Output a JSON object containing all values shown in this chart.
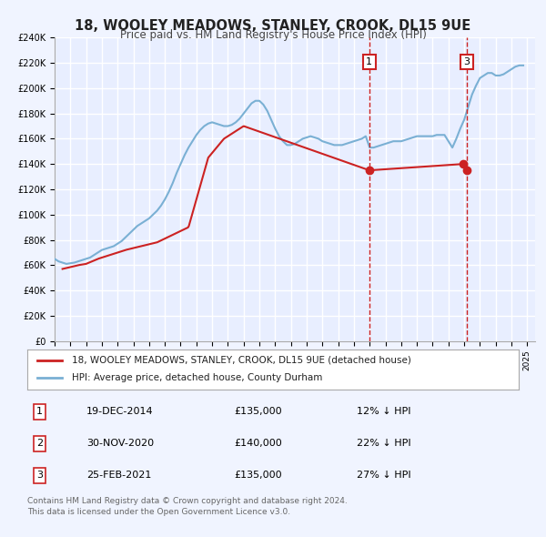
{
  "title": "18, WOOLEY MEADOWS, STANLEY, CROOK, DL15 9UE",
  "subtitle": "Price paid vs. HM Land Registry's House Price Index (HPI)",
  "bg_color": "#f0f4ff",
  "plot_bg_color": "#e8eeff",
  "grid_color": "#ffffff",
  "hpi_color": "#7ab0d4",
  "price_color": "#cc2222",
  "ylim": [
    0,
    240000
  ],
  "yticks": [
    0,
    20000,
    40000,
    60000,
    80000,
    100000,
    120000,
    140000,
    160000,
    180000,
    200000,
    220000,
    240000
  ],
  "xlim_start": 1995.0,
  "xlim_end": 2025.5,
  "xticks": [
    1995,
    1996,
    1997,
    1998,
    1999,
    2000,
    2001,
    2002,
    2003,
    2004,
    2005,
    2006,
    2007,
    2008,
    2009,
    2010,
    2011,
    2012,
    2013,
    2014,
    2015,
    2016,
    2017,
    2018,
    2019,
    2020,
    2021,
    2022,
    2023,
    2024,
    2025
  ],
  "legend_label_red": "18, WOOLEY MEADOWS, STANLEY, CROOK, DL15 9UE (detached house)",
  "legend_label_blue": "HPI: Average price, detached house, County Durham",
  "transactions": [
    {
      "num": 1,
      "date": "19-DEC-2014",
      "price": 135000,
      "pct": "12%",
      "dir": "↓",
      "x": 2014.97
    },
    {
      "num": 2,
      "date": "30-NOV-2020",
      "price": 140000,
      "pct": "22%",
      "dir": "↓",
      "x": 2020.92
    },
    {
      "num": 3,
      "date": "25-FEB-2021",
      "price": 135000,
      "pct": "27%",
      "dir": "↓",
      "x": 2021.15
    }
  ],
  "vline1_x": 2014.97,
  "vline2_x": 2021.15,
  "footer1": "Contains HM Land Registry data © Crown copyright and database right 2024.",
  "footer2": "This data is licensed under the Open Government Licence v3.0.",
  "hpi_data_x": [
    1995.0,
    1995.25,
    1995.5,
    1995.75,
    1996.0,
    1996.25,
    1996.5,
    1996.75,
    1997.0,
    1997.25,
    1997.5,
    1997.75,
    1998.0,
    1998.25,
    1998.5,
    1998.75,
    1999.0,
    1999.25,
    1999.5,
    1999.75,
    2000.0,
    2000.25,
    2000.5,
    2000.75,
    2001.0,
    2001.25,
    2001.5,
    2001.75,
    2002.0,
    2002.25,
    2002.5,
    2002.75,
    2003.0,
    2003.25,
    2003.5,
    2003.75,
    2004.0,
    2004.25,
    2004.5,
    2004.75,
    2005.0,
    2005.25,
    2005.5,
    2005.75,
    2006.0,
    2006.25,
    2006.5,
    2006.75,
    2007.0,
    2007.25,
    2007.5,
    2007.75,
    2008.0,
    2008.25,
    2008.5,
    2008.75,
    2009.0,
    2009.25,
    2009.5,
    2009.75,
    2010.0,
    2010.25,
    2010.5,
    2010.75,
    2011.0,
    2011.25,
    2011.5,
    2011.75,
    2012.0,
    2012.25,
    2012.5,
    2012.75,
    2013.0,
    2013.25,
    2013.5,
    2013.75,
    2014.0,
    2014.25,
    2014.5,
    2014.75,
    2015.0,
    2015.25,
    2015.5,
    2015.75,
    2016.0,
    2016.25,
    2016.5,
    2016.75,
    2017.0,
    2017.25,
    2017.5,
    2017.75,
    2018.0,
    2018.25,
    2018.5,
    2018.75,
    2019.0,
    2019.25,
    2019.5,
    2019.75,
    2020.0,
    2020.25,
    2020.5,
    2020.75,
    2021.0,
    2021.25,
    2021.5,
    2021.75,
    2022.0,
    2022.25,
    2022.5,
    2022.75,
    2023.0,
    2023.25,
    2023.5,
    2023.75,
    2024.0,
    2024.25,
    2024.5,
    2024.75
  ],
  "hpi_data_y": [
    65000,
    63000,
    62000,
    61000,
    61500,
    62000,
    63000,
    64000,
    65000,
    66000,
    68000,
    70000,
    72000,
    73000,
    74000,
    75000,
    77000,
    79000,
    82000,
    85000,
    88000,
    91000,
    93000,
    95000,
    97000,
    100000,
    103000,
    107000,
    112000,
    118000,
    125000,
    133000,
    140000,
    147000,
    153000,
    158000,
    163000,
    167000,
    170000,
    172000,
    173000,
    172000,
    171000,
    170000,
    170000,
    171000,
    173000,
    176000,
    180000,
    184000,
    188000,
    190000,
    190000,
    187000,
    182000,
    175000,
    168000,
    162000,
    158000,
    155000,
    155000,
    156000,
    158000,
    160000,
    161000,
    162000,
    161000,
    160000,
    158000,
    157000,
    156000,
    155000,
    155000,
    155000,
    156000,
    157000,
    158000,
    159000,
    160000,
    162000,
    153000,
    153000,
    154000,
    155000,
    156000,
    157000,
    158000,
    158000,
    158000,
    159000,
    160000,
    161000,
    162000,
    162000,
    162000,
    162000,
    162000,
    163000,
    163000,
    163000,
    158000,
    153000,
    160000,
    168000,
    175000,
    185000,
    195000,
    202000,
    208000,
    210000,
    212000,
    212000,
    210000,
    210000,
    211000,
    213000,
    215000,
    217000,
    218000,
    218000
  ],
  "price_data_x": [
    1995.5,
    1996.5,
    1997.0,
    1997.75,
    1999.5,
    2001.5,
    2003.5,
    2004.75,
    2005.75,
    2007.0,
    2014.97,
    2020.92,
    2021.15
  ],
  "price_data_y": [
    57000,
    60000,
    61000,
    65000,
    72000,
    78000,
    90000,
    145000,
    160000,
    170000,
    135000,
    140000,
    135000
  ]
}
